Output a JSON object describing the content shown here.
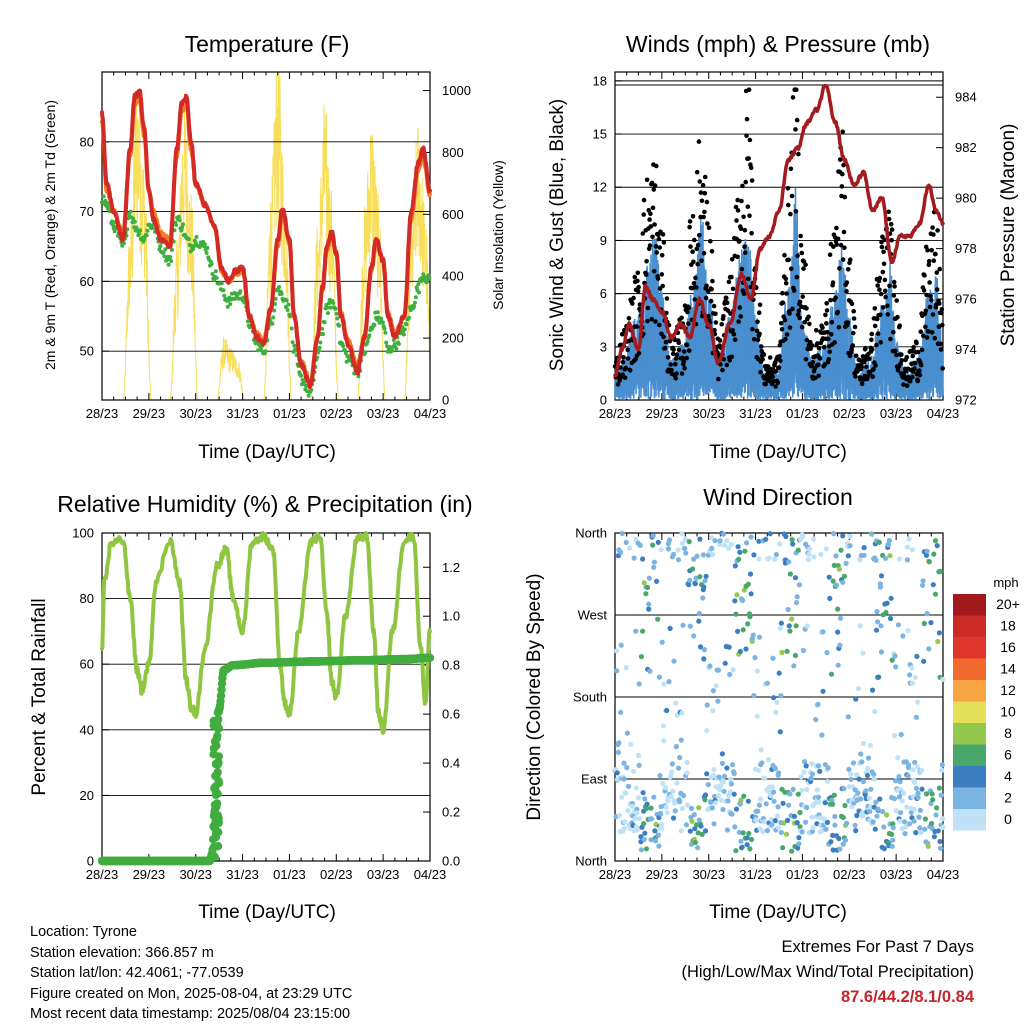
{
  "x_ticks": [
    "28/23",
    "29/23",
    "30/23",
    "31/23",
    "01/23",
    "02/23",
    "03/23",
    "04/23"
  ],
  "x_axis_title": "Time (Day/UTC)",
  "colors": {
    "temp_red": "#d42a27",
    "temp_orange": "#f07f23",
    "dewpoint_green": "#3faf3f",
    "solar_yellow": "#f8de5b",
    "wind_blue": "#4a8fcf",
    "gust_black": "#000000",
    "pressure_maroon": "#a31a1f",
    "rh_green": "#8ec641",
    "precip_green": "#41ad3f",
    "extremes_red": "#c3262b"
  },
  "chart_data": [
    {
      "type": "line",
      "title": "Temperature (F)",
      "xlabel": "Time (Day/UTC)",
      "ylabel": "2m & 9m T (Red, Orange) & 2m Td (Green)",
      "y2label": "Solar Insolation (Yellow)",
      "ylim": [
        43,
        90
      ],
      "y_ticks": [
        50,
        60,
        70,
        80
      ],
      "y2lim": [
        0,
        1060
      ],
      "y2_ticks": [
        0,
        200,
        400,
        600,
        800,
        1000
      ],
      "x_days": [
        0,
        1,
        2,
        3,
        4,
        5,
        6,
        7
      ],
      "series": [
        {
          "name": "2m T",
          "color": "#d42a27",
          "x": [
            0,
            0.1,
            0.25,
            0.45,
            0.6,
            0.7,
            0.8,
            0.9,
            1.0,
            1.1,
            1.25,
            1.45,
            1.6,
            1.7,
            1.8,
            1.9,
            2.0,
            2.2,
            2.4,
            2.55,
            2.7,
            2.85,
            3.0,
            3.15,
            3.3,
            3.45,
            3.6,
            3.75,
            3.85,
            4.0,
            4.1,
            4.25,
            4.45,
            4.6,
            4.7,
            4.8,
            4.9,
            5.0,
            5.1,
            5.25,
            5.45,
            5.6,
            5.75,
            5.85,
            6.0,
            6.1,
            6.25,
            6.45,
            6.6,
            6.75,
            6.85,
            7.0
          ],
          "y": [
            84,
            74,
            70,
            66,
            79,
            86.5,
            87.2,
            82,
            73,
            69,
            66,
            65,
            79,
            85.5,
            86.4,
            80,
            74,
            71,
            68,
            62,
            60,
            61.5,
            62,
            55,
            52,
            51,
            56,
            66,
            70.5,
            66,
            55,
            48,
            45,
            52,
            59,
            65,
            67,
            64,
            55,
            51,
            47,
            52,
            62,
            66,
            63,
            55,
            52,
            55,
            70,
            77,
            79,
            73
          ]
        },
        {
          "name": "9m T",
          "color": "#f07f23",
          "x": [
            0,
            0.1,
            0.25,
            0.45,
            0.6,
            0.7,
            0.8,
            0.9,
            1.0,
            1.1,
            1.25,
            1.45,
            1.6,
            1.7,
            1.8,
            1.9,
            2.0,
            2.2,
            2.4,
            2.55,
            2.7,
            2.85,
            3.0,
            3.15,
            3.3,
            3.45,
            3.6,
            3.75,
            3.85,
            4.0,
            4.1,
            4.25,
            4.45,
            4.6,
            4.7,
            4.8,
            4.9,
            5.0,
            5.1,
            5.25,
            5.45,
            5.6,
            5.75,
            5.85,
            6.0,
            6.1,
            6.25,
            6.45,
            6.6,
            6.75,
            6.85,
            7.0
          ],
          "y": [
            83,
            73,
            70,
            67,
            78,
            85.5,
            86.2,
            81,
            73,
            70,
            67,
            66,
            78,
            84.5,
            85.4,
            79,
            74,
            71,
            68,
            61.5,
            60,
            61,
            61.5,
            55,
            52.5,
            51.5,
            56,
            65,
            69.5,
            65.5,
            55,
            48.5,
            45.5,
            52,
            58.5,
            64.5,
            66.5,
            64,
            55.5,
            51.5,
            48,
            52,
            61.5,
            65.5,
            63,
            55.5,
            52.5,
            55,
            69,
            76,
            78,
            72.5
          ]
        },
        {
          "name": "2m Td",
          "color": "#3faf3f",
          "x": [
            0,
            0.1,
            0.25,
            0.45,
            0.6,
            0.7,
            0.8,
            0.9,
            1.0,
            1.1,
            1.25,
            1.45,
            1.6,
            1.7,
            1.8,
            1.9,
            2.0,
            2.2,
            2.4,
            2.55,
            2.7,
            2.85,
            3.0,
            3.15,
            3.3,
            3.45,
            3.6,
            3.75,
            3.85,
            4.0,
            4.1,
            4.25,
            4.45,
            4.6,
            4.7,
            4.8,
            4.9,
            5.0,
            5.1,
            5.25,
            5.45,
            5.6,
            5.75,
            5.85,
            6.0,
            6.1,
            6.25,
            6.45,
            6.6,
            6.75,
            6.85,
            7.0
          ],
          "y": [
            72,
            71,
            68,
            65,
            70,
            68,
            67,
            66,
            68,
            68,
            65,
            63,
            69,
            68,
            66,
            65,
            66,
            65,
            61,
            59,
            57,
            58,
            58,
            54,
            51,
            50,
            54,
            59,
            58,
            56,
            50,
            46,
            44,
            49,
            53,
            56,
            57,
            56,
            51,
            49,
            47,
            50,
            53,
            55,
            54,
            50,
            51,
            53,
            56,
            59,
            61,
            60
          ]
        },
        {
          "name": "Solar Insolation",
          "color": "#f8de5b",
          "axis": "y2",
          "x": [
            0,
            0.25,
            0.45,
            0.6,
            0.75,
            0.9,
            1.05,
            1.25,
            1.45,
            1.6,
            1.75,
            1.9,
            2.05,
            2.25,
            2.45,
            2.6,
            2.75,
            2.9,
            3.05,
            3.25,
            3.45,
            3.6,
            3.75,
            3.9,
            4.05,
            4.25,
            4.45,
            4.6,
            4.75,
            4.9,
            5.05,
            5.25,
            5.45,
            5.6,
            5.75,
            5.9,
            6.05,
            6.25,
            6.45,
            6.6,
            6.75,
            6.9,
            7.0
          ],
          "y": [
            0,
            0,
            0,
            500,
            950,
            700,
            0,
            0,
            0,
            450,
            880,
            600,
            0,
            0,
            0,
            180,
            150,
            120,
            0,
            0,
            0,
            600,
            1000,
            650,
            0,
            0,
            0,
            500,
            850,
            600,
            0,
            0,
            0,
            550,
            820,
            580,
            0,
            0,
            0,
            520,
            800,
            550,
            200
          ]
        }
      ]
    },
    {
      "type": "line",
      "title": "Winds (mph) & Pressure (mb)",
      "xlabel": "Time (Day/UTC)",
      "ylabel": "Sonic Wind & Gust (Blue, Black)",
      "y2label": "Station Pressure (Maroon)",
      "ylim": [
        0,
        18.5
      ],
      "y_ticks": [
        0,
        3,
        6,
        9,
        12,
        15,
        18
      ],
      "y2lim": [
        972,
        985
      ],
      "y2_ticks": [
        972,
        974,
        976,
        978,
        980,
        982,
        984
      ],
      "series": [
        {
          "name": "Sonic Wind",
          "color": "#4a8fcf",
          "x": [
            0,
            0.2,
            0.45,
            0.7,
            0.85,
            1.0,
            1.2,
            1.45,
            1.7,
            1.85,
            2.0,
            2.2,
            2.45,
            2.7,
            2.85,
            3.0,
            3.2,
            3.45,
            3.7,
            3.85,
            4.0,
            4.2,
            4.45,
            4.7,
            4.85,
            5.0,
            5.2,
            5.45,
            5.7,
            5.85,
            6.0,
            6.2,
            6.45,
            6.7,
            6.85,
            7.0
          ],
          "y": [
            1,
            1.5,
            3,
            5,
            6,
            4,
            1.5,
            2,
            5,
            6.5,
            4,
            1.5,
            3,
            5.5,
            6,
            3,
            1,
            1,
            4,
            7.5,
            3,
            1.5,
            2,
            4,
            5.5,
            3,
            1,
            1.5,
            3.5,
            5,
            2.5,
            1,
            1.5,
            4,
            4.5,
            2
          ]
        },
        {
          "name": "Gust",
          "color": "#000000",
          "x": [
            0,
            0.2,
            0.45,
            0.7,
            0.85,
            1.0,
            1.2,
            1.45,
            1.7,
            1.85,
            2.0,
            2.2,
            2.45,
            2.7,
            2.85,
            3.0,
            3.2,
            3.45,
            3.7,
            3.85,
            4.0,
            4.2,
            4.45,
            4.7,
            4.85,
            5.0,
            5.2,
            5.45,
            5.7,
            5.85,
            6.0,
            6.2,
            6.45,
            6.7,
            6.85,
            7.0
          ],
          "y": [
            2,
            3.5,
            6,
            11,
            12,
            8,
            3,
            4,
            11,
            13,
            9,
            3,
            6,
            12,
            16,
            7,
            2,
            2,
            10,
            16,
            8,
            3,
            4,
            9,
            13,
            7,
            2,
            3,
            8,
            10,
            5,
            2,
            3,
            8,
            9,
            4
          ]
        },
        {
          "name": "Station Pressure",
          "color": "#a31a1f",
          "axis": "y2",
          "x": [
            0,
            0.15,
            0.3,
            0.5,
            0.65,
            0.8,
            1.0,
            1.2,
            1.4,
            1.6,
            1.8,
            2.0,
            2.2,
            2.45,
            2.7,
            2.9,
            3.1,
            3.3,
            3.5,
            3.7,
            3.9,
            4.1,
            4.3,
            4.5,
            4.7,
            4.9,
            5.1,
            5.3,
            5.5,
            5.7,
            5.9,
            6.1,
            6.3,
            6.5,
            6.7,
            6.85,
            7.0
          ],
          "y": [
            973,
            974,
            975,
            974,
            976.5,
            976,
            975.5,
            974.5,
            975,
            974.5,
            976,
            975,
            973.5,
            975,
            977,
            976,
            978,
            978.5,
            979.5,
            981.5,
            982,
            983,
            983.5,
            984.5,
            983,
            981.5,
            980.5,
            981,
            979.5,
            980,
            977.5,
            978.5,
            978.5,
            979,
            980.5,
            979.5,
            979
          ]
        }
      ]
    },
    {
      "type": "line",
      "title": "Relative Humidity (%) & Precipitation (in)",
      "xlabel": "Time (Day/UTC)",
      "ylabel": "Percent & Total Rainfall",
      "ylim": [
        0,
        100
      ],
      "y_ticks": [
        0,
        20,
        40,
        60,
        80,
        100
      ],
      "y2lim": [
        0,
        1.34
      ],
      "y2_ticks": [
        0.0,
        0.2,
        0.4,
        0.6,
        0.8,
        1.0,
        1.2
      ],
      "series": [
        {
          "name": "Relative Humidity",
          "color": "#8ec641",
          "x": [
            0,
            0.05,
            0.2,
            0.45,
            0.6,
            0.75,
            0.85,
            1.0,
            1.15,
            1.45,
            1.65,
            1.8,
            1.9,
            2.0,
            2.2,
            2.45,
            2.65,
            2.8,
            3.0,
            3.2,
            3.45,
            3.65,
            3.8,
            3.9,
            4.0,
            4.2,
            4.45,
            4.65,
            4.8,
            4.9,
            5.0,
            5.2,
            5.45,
            5.65,
            5.8,
            5.9,
            6.0,
            6.2,
            6.45,
            6.65,
            6.8,
            6.9,
            7.0
          ],
          "y": [
            65,
            85,
            97,
            98,
            80,
            58,
            52,
            60,
            85,
            98,
            85,
            55,
            47,
            45,
            65,
            90,
            95,
            80,
            70,
            97,
            99,
            95,
            60,
            48,
            45,
            70,
            97,
            99,
            75,
            55,
            50,
            75,
            98,
            99,
            70,
            45,
            40,
            70,
            98,
            99,
            65,
            48,
            70
          ]
        },
        {
          "name": "Total Precipitation",
          "color": "#41ad3f",
          "axis": "y2",
          "x": [
            0,
            2.3,
            2.35,
            2.4,
            2.45,
            2.5,
            2.6,
            2.8,
            3.5,
            4.5,
            5.5,
            6.5,
            7.0
          ],
          "y": [
            0,
            0,
            0.03,
            0.2,
            0.5,
            0.62,
            0.78,
            0.8,
            0.81,
            0.815,
            0.82,
            0.825,
            0.83
          ]
        }
      ]
    },
    {
      "type": "scatter",
      "title": "Wind Direction",
      "xlabel": "Time (Day/UTC)",
      "ylabel": "Direction (Colored By Speed)",
      "y_ticks": [
        "North",
        "East",
        "South",
        "West",
        "North"
      ],
      "ylim": [
        0,
        360
      ],
      "colorbar": {
        "label": "mph",
        "labels": [
          "20+",
          "18",
          "16",
          "14",
          "12",
          "10",
          "8",
          "6",
          "4",
          "2",
          "0"
        ],
        "colors": [
          "#a0191c",
          "#cb2a26",
          "#e0352a",
          "#ef6a2c",
          "#f7a443",
          "#e4e058",
          "#95c84c",
          "#48a86a",
          "#3c7fc0",
          "#7bb4e2",
          "#bfe2f7"
        ]
      }
    }
  ],
  "info": {
    "location": "Location: Tyrone",
    "elevation": "Station elevation: 366.857 m",
    "latlon": "Station lat/lon: 42.4061; -77.0539",
    "created": "Figure created on Mon, 2025-08-04, at 23:29 UTC",
    "recent": "Most recent data timestamp: 2025/08/04 23:15:00"
  },
  "extremes": {
    "title": "Extremes For Past 7 Days",
    "subtitle": "(High/Low/Max Wind/Total Precipitation)",
    "values": "87.6/44.2/8.1/0.84"
  }
}
